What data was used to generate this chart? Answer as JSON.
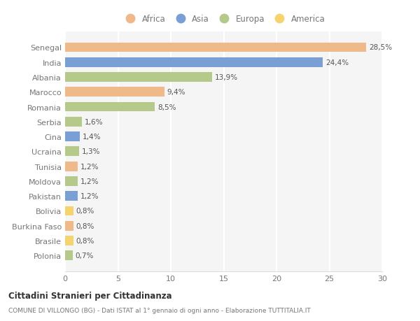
{
  "categories": [
    "Senegal",
    "India",
    "Albania",
    "Marocco",
    "Romania",
    "Serbia",
    "Cina",
    "Ucraina",
    "Tunisia",
    "Moldova",
    "Pakistan",
    "Bolivia",
    "Burkina Faso",
    "Brasile",
    "Polonia"
  ],
  "values": [
    28.5,
    24.4,
    13.9,
    9.4,
    8.5,
    1.6,
    1.4,
    1.3,
    1.2,
    1.2,
    1.2,
    0.8,
    0.8,
    0.8,
    0.7
  ],
  "labels": [
    "28,5%",
    "24,4%",
    "13,9%",
    "9,4%",
    "8,5%",
    "1,6%",
    "1,4%",
    "1,3%",
    "1,2%",
    "1,2%",
    "1,2%",
    "0,8%",
    "0,8%",
    "0,8%",
    "0,7%"
  ],
  "colors": [
    "#f0b989",
    "#7a9fd4",
    "#b5c98a",
    "#f0b989",
    "#b5c98a",
    "#b5c98a",
    "#7a9fd4",
    "#b5c98a",
    "#f0b989",
    "#b5c98a",
    "#7a9fd4",
    "#f5d470",
    "#f0b989",
    "#f5d470",
    "#b5c98a"
  ],
  "legend_labels": [
    "Africa",
    "Asia",
    "Europa",
    "America"
  ],
  "legend_colors": [
    "#f0b989",
    "#7a9fd4",
    "#b5c98a",
    "#f5d470"
  ],
  "title": "Cittadini Stranieri per Cittadinanza",
  "subtitle": "COMUNE DI VILLONGO (BG) - Dati ISTAT al 1° gennaio di ogni anno - Elaborazione TUTTITALIA.IT",
  "xlim": [
    0,
    30
  ],
  "xticks": [
    0,
    5,
    10,
    15,
    20,
    25,
    30
  ],
  "bg_color": "#ffffff",
  "plot_bg_color": "#f5f5f5",
  "grid_color": "#ffffff",
  "label_color": "#777777",
  "text_color": "#555555"
}
